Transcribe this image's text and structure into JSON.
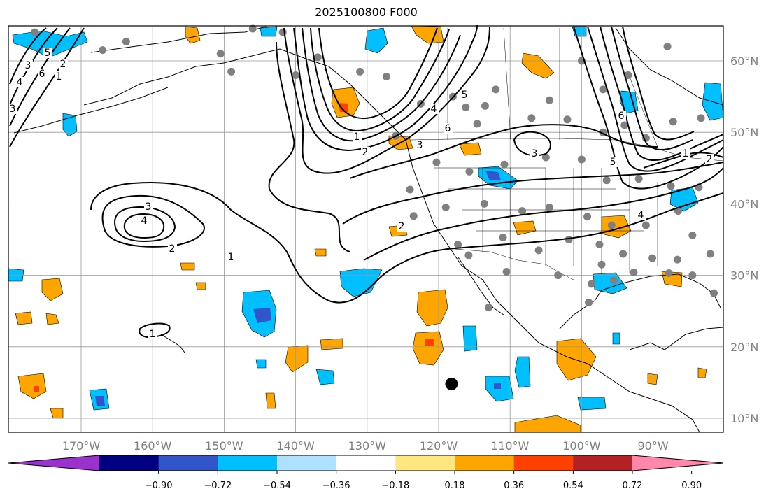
{
  "chart_data": {
    "type": "map",
    "title": "2025100800 F000",
    "lon_ticks": [
      "170°W",
      "160°W",
      "150°W",
      "140°W",
      "130°W",
      "120°W",
      "110°W",
      "100°W",
      "90°W"
    ],
    "lat_ticks": [
      "60°N",
      "50°N",
      "40°N",
      "30°N",
      "20°N",
      "10°N"
    ],
    "lon_range": [
      -180,
      -80
    ],
    "lat_range": [
      8,
      65
    ],
    "colorbar": {
      "ticks": [
        "−0.90",
        "−0.72",
        "−0.54",
        "−0.36",
        "−0.18",
        "0.18",
        "0.36",
        "0.54",
        "0.72",
        "0.90"
      ],
      "colors": [
        "#9933cc",
        "#000080",
        "#3355cc",
        "#00bfff",
        "#aee0ff",
        "#ffffff",
        "#ffe680",
        "#ffa500",
        "#ff4000",
        "#b22222",
        "#ff88aa"
      ]
    },
    "contour_labels": [
      "1",
      "2",
      "3",
      "4",
      "1",
      "2",
      "3",
      "4",
      "5",
      "6",
      "1",
      "2",
      "3",
      "4",
      "5",
      "6",
      "1",
      "2",
      "3",
      "4",
      "5",
      "6",
      "1",
      "2",
      "3"
    ],
    "marker": {
      "lon": -118.2,
      "lat": 14.8
    }
  }
}
